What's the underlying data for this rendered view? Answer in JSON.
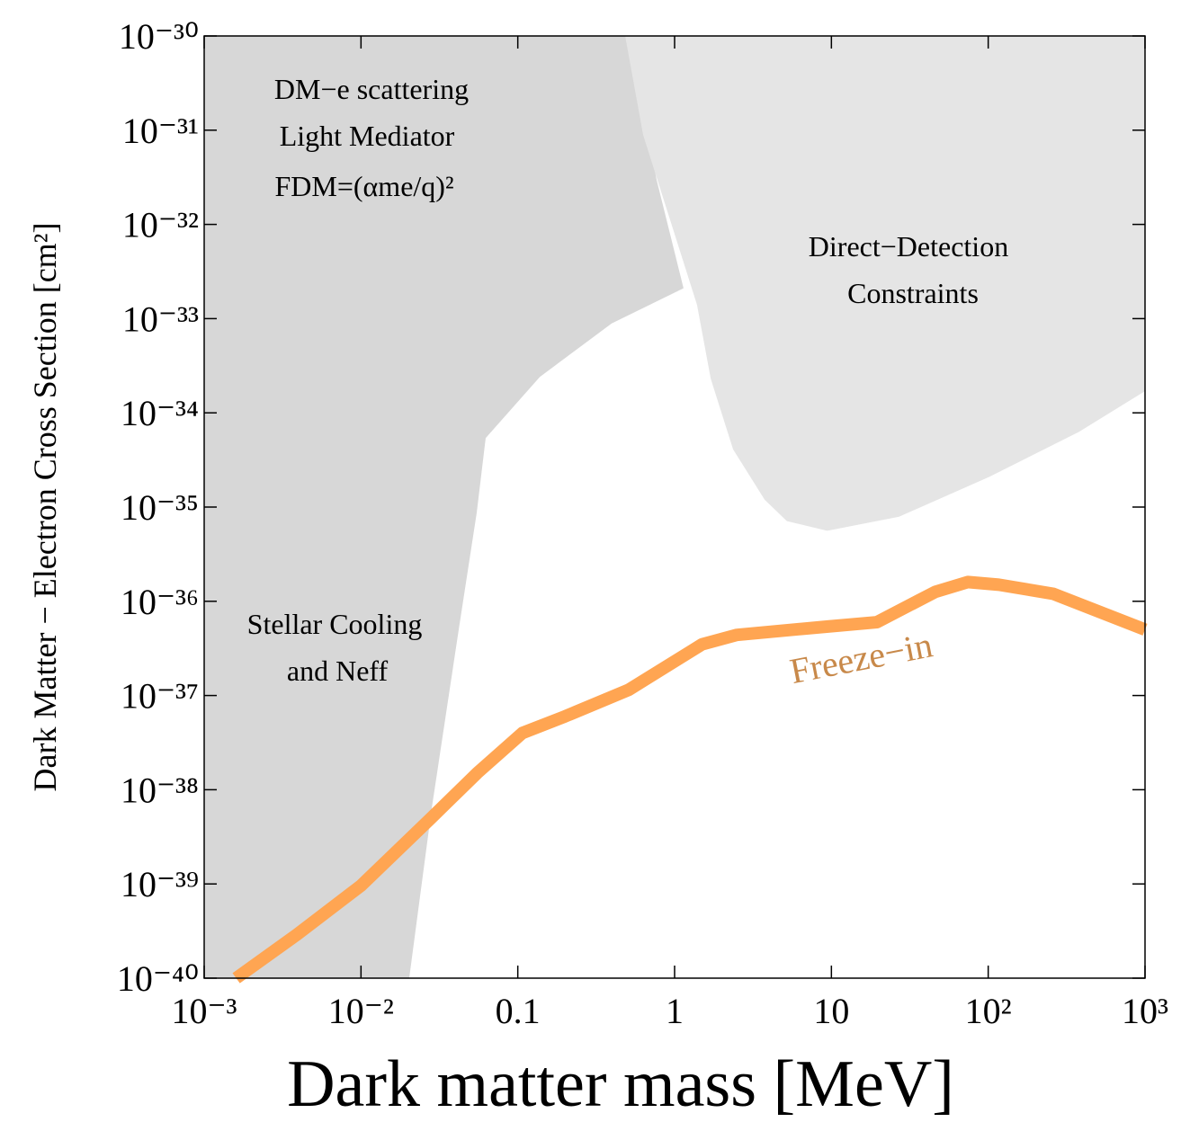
{
  "chart_data": {
    "type": "line",
    "xlabel": "Dark matter mass [MeV]",
    "ylabel": "Dark Matter − Electron Cross Section [cm²]",
    "log_x": true,
    "log_y": true,
    "xlim": [
      0.001,
      1000
    ],
    "ylim": [
      1e-40,
      1e-30
    ],
    "xticks": [
      {
        "value": 0.001,
        "label": "10⁻³"
      },
      {
        "value": 0.01,
        "label": "10⁻²"
      },
      0.1,
      1,
      10,
      {
        "value": 100,
        "label": "10²"
      },
      {
        "value": 1000,
        "label": "10³"
      }
    ],
    "yticks": [
      {
        "value": 1e-40,
        "label": "10⁻⁴⁰"
      },
      {
        "value": 1e-39,
        "label": "10⁻³⁹"
      },
      {
        "value": 1e-38,
        "label": "10⁻³⁸"
      },
      {
        "value": 1e-37,
        "label": "10⁻³⁷"
      },
      {
        "value": 1e-36,
        "label": "10⁻³⁶"
      },
      {
        "value": 1e-35,
        "label": "10⁻³⁵"
      },
      {
        "value": 1e-34,
        "label": "10⁻³⁴"
      },
      {
        "value": 1e-33,
        "label": "10⁻³³"
      },
      {
        "value": 1e-32,
        "label": "10⁻³²"
      },
      {
        "value": 1e-31,
        "label": "10⁻³¹"
      },
      {
        "value": 1e-30,
        "label": "10⁻³⁰"
      }
    ],
    "regions": [
      {
        "color": "#d7d7d7",
        "x": [
          0.0203,
          0.0282,
          0.042,
          0.0547,
          0.0624,
          0.138,
          0.397,
          1.14,
          0.767,
          0.516,
          0.001,
          0.001
        ],
        "y": [
          1e-40,
          6.2e-39,
          5e-37,
          8.7e-36,
          5.4e-35,
          2.4e-34,
          8.9e-34,
          2.1e-33,
          3e-32,
          1e-30,
          1e-30,
          1e-40
        ]
      },
      {
        "color": "#e5e5e5",
        "x": [
          0.484,
          0.63,
          1.0,
          1.39,
          1.7,
          2.36,
          3.75,
          5.2,
          9.4,
          27,
          102,
          380,
          1000,
          1000
        ],
        "y": [
          1e-30,
          8.9e-32,
          7.9e-33,
          1.4e-33,
          2.3e-34,
          4.1e-35,
          1.2e-35,
          7.1e-36,
          5.6e-36,
          7.9e-36,
          2.1e-35,
          6.3e-35,
          1.7e-34,
          1e-30
        ]
      }
    ],
    "series": [
      {
        "name": "Freeze−in",
        "color": "#ffa552",
        "x": [
          0.0016,
          0.0039,
          0.01,
          0.028,
          0.055,
          0.107,
          0.2,
          0.51,
          1.5,
          2.5,
          9.5,
          19.5,
          46,
          74,
          117,
          260,
          1000
        ],
        "values": [
          1e-40,
          2.9e-40,
          9.6e-40,
          5e-39,
          1.5e-38,
          4e-38,
          6e-38,
          1.15e-37,
          3.5e-37,
          4.4e-37,
          5.4e-37,
          6e-37,
          1.26e-36,
          1.6e-36,
          1.5e-36,
          1.2e-36,
          5e-37
        ]
      }
    ],
    "annotations": [
      "DM−e scattering",
      "Light Mediator",
      "FDM=(αme/q)²",
      "Direct−Detection",
      "Constraints",
      "Stellar Cooling",
      "and Neff"
    ]
  }
}
